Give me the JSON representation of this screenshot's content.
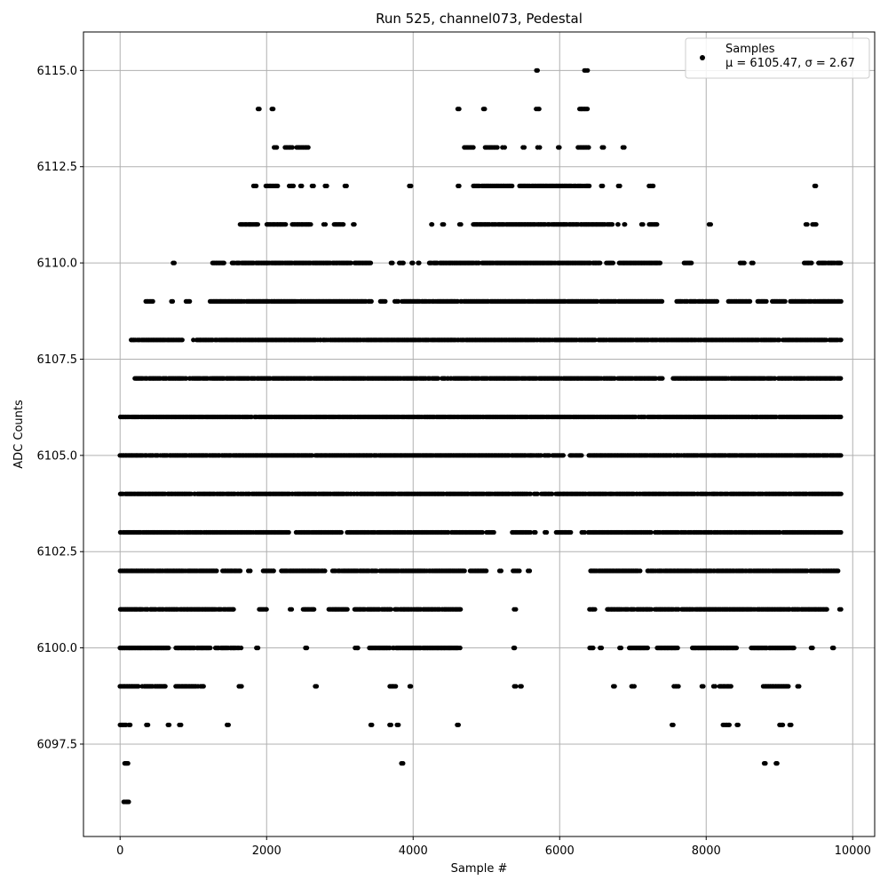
{
  "chart_data": {
    "type": "scatter",
    "title": "Run 525, channel073, Pedestal",
    "xlabel": "Sample #",
    "ylabel": "ADC Counts",
    "xlim": [
      -500,
      10300
    ],
    "ylim": [
      6095.1,
      6116.0
    ],
    "x_ticks": [
      0,
      2000,
      4000,
      6000,
      8000,
      10000
    ],
    "x_tick_labels": [
      "0",
      "2000",
      "4000",
      "6000",
      "8000",
      "10000"
    ],
    "y_ticks": [
      6097.5,
      6100.0,
      6102.5,
      6105.0,
      6107.5,
      6110.0,
      6112.5,
      6115.0
    ],
    "y_tick_labels": [
      "6097.5",
      "6100.0",
      "6102.5",
      "6105.0",
      "6107.5",
      "6110.0",
      "6112.5",
      "6115.0"
    ],
    "grid": true,
    "legend": {
      "placement": "top-right",
      "entries": [
        {
          "label": "Samples",
          "stat_line": "μ = 6105.47, σ = 2.67"
        }
      ]
    },
    "marker_color": "#000000",
    "series": [
      {
        "name": "Samples",
        "sample_count": 9840,
        "level_ranges": [
          {
            "y": 6096,
            "x_ranges": [
              [
                50,
                120
              ]
            ]
          },
          {
            "y": 6097,
            "x_ranges": [
              [
                60,
                110
              ],
              [
                3840,
                3860
              ],
              [
                8790,
                8810
              ],
              [
                8950,
                8970
              ]
            ]
          },
          {
            "y": 6098,
            "x_ranges": [
              [
                0,
                80
              ],
              [
                120,
                140
              ],
              [
                360,
                380
              ],
              [
                650,
                670
              ],
              [
                810,
                830
              ],
              [
                1460,
                1480
              ],
              [
                3420,
                3440
              ],
              [
                3680,
                3700
              ],
              [
                3780,
                3800
              ],
              [
                4600,
                4620
              ],
              [
                7530,
                7550
              ],
              [
                8230,
                8320
              ],
              [
                8420,
                8440
              ],
              [
                9000,
                9050
              ],
              [
                9140,
                9160
              ]
            ]
          },
          {
            "y": 6099,
            "x_ranges": [
              [
                0,
                250
              ],
              [
                300,
                620
              ],
              [
                760,
                1140
              ],
              [
                1620,
                1660
              ],
              [
                2660,
                2680
              ],
              [
                3680,
                3760
              ],
              [
                3950,
                3970
              ],
              [
                5380,
                5400
              ],
              [
                5460,
                5480
              ],
              [
                6730,
                6750
              ],
              [
                6980,
                7020
              ],
              [
                7560,
                7620
              ],
              [
                7940,
                7960
              ],
              [
                8100,
                8120
              ],
              [
                8180,
                8340
              ],
              [
                8780,
                9120
              ],
              [
                9250,
                9270
              ]
            ]
          },
          {
            "y": 6100,
            "x_ranges": [
              [
                0,
                660
              ],
              [
                760,
                1230
              ],
              [
                1300,
                1650
              ],
              [
                1860,
                1880
              ],
              [
                2530,
                2550
              ],
              [
                3210,
                3250
              ],
              [
                3400,
                4640
              ],
              [
                5370,
                5390
              ],
              [
                6410,
                6460
              ],
              [
                6550,
                6570
              ],
              [
                6820,
                6840
              ],
              [
                6950,
                7200
              ],
              [
                7330,
                7610
              ],
              [
                7810,
                8430
              ],
              [
                8600,
                9200
              ],
              [
                9430,
                9450
              ],
              [
                9720,
                9740
              ]
            ]
          },
          {
            "y": 6101,
            "x_ranges": [
              [
                0,
                1550
              ],
              [
                1900,
                2000
              ],
              [
                2320,
                2340
              ],
              [
                2500,
                2650
              ],
              [
                2850,
                3100
              ],
              [
                3200,
                3700
              ],
              [
                3750,
                4650
              ],
              [
                5380,
                5400
              ],
              [
                6410,
                6480
              ],
              [
                6650,
                7250
              ],
              [
                7300,
                9650
              ],
              [
                9820,
                9840
              ]
            ]
          },
          {
            "y": 6102,
            "x_ranges": [
              [
                0,
                1320
              ],
              [
                1400,
                1640
              ],
              [
                1750,
                1780
              ],
              [
                1950,
                2100
              ],
              [
                2200,
                2800
              ],
              [
                2900,
                3500
              ],
              [
                3550,
                4700
              ],
              [
                4780,
                5000
              ],
              [
                5180,
                5200
              ],
              [
                5360,
                5450
              ],
              [
                5570,
                5590
              ],
              [
                6420,
                7100
              ],
              [
                7200,
                9800
              ]
            ]
          },
          {
            "y": 6103,
            "x_ranges": [
              [
                0,
                2300
              ],
              [
                2400,
                3020
              ],
              [
                3100,
                4950
              ],
              [
                5000,
                5100
              ],
              [
                5350,
                5600
              ],
              [
                5650,
                5670
              ],
              [
                5800,
                5820
              ],
              [
                5950,
                6150
              ],
              [
                6300,
                6340
              ],
              [
                6390,
                7250
              ],
              [
                7300,
                9840
              ]
            ]
          },
          {
            "y": 6104,
            "x_ranges": [
              [
                0,
                5600
              ],
              [
                5650,
                5700
              ],
              [
                5750,
                5900
              ],
              [
                5950,
                9840
              ]
            ]
          },
          {
            "y": 6105,
            "x_ranges": [
              [
                0,
                5860
              ],
              [
                5900,
                6050
              ],
              [
                6140,
                6300
              ],
              [
                6400,
                9840
              ]
            ]
          },
          {
            "y": 6106,
            "x_ranges": [
              [
                0,
                9840
              ]
            ]
          },
          {
            "y": 6107,
            "x_ranges": [
              [
                200,
                7400
              ],
              [
                7550,
                9840
              ]
            ]
          },
          {
            "y": 6108,
            "x_ranges": [
              [
                150,
                850
              ],
              [
                1000,
                9000
              ],
              [
                9050,
                9840
              ]
            ]
          },
          {
            "y": 6109,
            "x_ranges": [
              [
                350,
                450
              ],
              [
                700,
                720
              ],
              [
                900,
                950
              ],
              [
                1230,
                3430
              ],
              [
                3550,
                3620
              ],
              [
                3750,
                3800
              ],
              [
                3850,
                7400
              ],
              [
                7600,
                8150
              ],
              [
                8300,
                8600
              ],
              [
                8700,
                8820
              ],
              [
                8900,
                9080
              ],
              [
                9150,
                9840
              ]
            ]
          },
          {
            "y": 6110,
            "x_ranges": [
              [
                720,
                740
              ],
              [
                1260,
                1420
              ],
              [
                1530,
                2870
              ],
              [
                2900,
                3150
              ],
              [
                3200,
                3420
              ],
              [
                3700,
                3720
              ],
              [
                3810,
                3870
              ],
              [
                3980,
                4000
              ],
              [
                4070,
                4080
              ],
              [
                4220,
                6550
              ],
              [
                6640,
                6730
              ],
              [
                6800,
                7370
              ],
              [
                7700,
                7800
              ],
              [
                8460,
                8520
              ],
              [
                8620,
                8640
              ],
              [
                9340,
                9440
              ],
              [
                9530,
                9840
              ]
            ]
          },
          {
            "y": 6111,
            "x_ranges": [
              [
                1640,
                1880
              ],
              [
                2000,
                2260
              ],
              [
                2350,
                2600
              ],
              [
                2780,
                2800
              ],
              [
                2920,
                3050
              ],
              [
                3180,
                3200
              ],
              [
                4250,
                4260
              ],
              [
                4400,
                4420
              ],
              [
                4630,
                4650
              ],
              [
                4820,
                6720
              ],
              [
                6790,
                6800
              ],
              [
                6880,
                6890
              ],
              [
                7120,
                7140
              ],
              [
                7220,
                7330
              ],
              [
                8040,
                8060
              ],
              [
                9360,
                9380
              ],
              [
                9450,
                9500
              ]
            ]
          },
          {
            "y": 6112,
            "x_ranges": [
              [
                1820,
                1860
              ],
              [
                1990,
                2150
              ],
              [
                2310,
                2370
              ],
              [
                2460,
                2480
              ],
              [
                2620,
                2640
              ],
              [
                2800,
                2820
              ],
              [
                3070,
                3090
              ],
              [
                3950,
                3970
              ],
              [
                4610,
                4630
              ],
              [
                4820,
                5350
              ],
              [
                5450,
                6420
              ],
              [
                6570,
                6590
              ],
              [
                6800,
                6820
              ],
              [
                7220,
                7280
              ],
              [
                9480,
                9500
              ]
            ]
          },
          {
            "y": 6113,
            "x_ranges": [
              [
                2100,
                2140
              ],
              [
                2250,
                2350
              ],
              [
                2410,
                2570
              ],
              [
                4700,
                4820
              ],
              [
                4980,
                5150
              ],
              [
                5220,
                5250
              ],
              [
                5500,
                5520
              ],
              [
                5700,
                5730
              ],
              [
                5980,
                6000
              ],
              [
                6250,
                6400
              ],
              [
                6580,
                6600
              ],
              [
                6860,
                6880
              ]
            ]
          },
          {
            "y": 6114,
            "x_ranges": [
              [
                1880,
                1900
              ],
              [
                2070,
                2090
              ],
              [
                4610,
                4630
              ],
              [
                4960,
                4980
              ],
              [
                5680,
                5720
              ],
              [
                6270,
                6380
              ]
            ]
          },
          {
            "y": 6115,
            "x_ranges": [
              [
                5680,
                5700
              ],
              [
                6340,
                6380
              ]
            ]
          }
        ]
      }
    ]
  }
}
